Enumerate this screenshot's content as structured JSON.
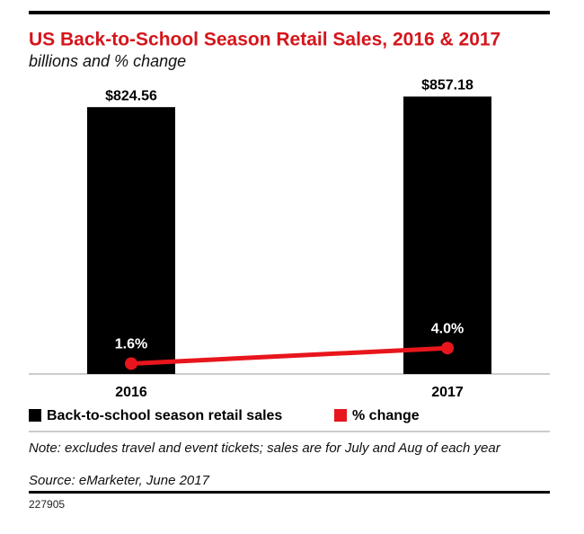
{
  "chart_data": {
    "type": "bar_line",
    "title": "US Back-to-School Season Retail Sales, 2016 & 2017",
    "subtitle": "billions and % change",
    "categories": [
      "2016",
      "2017"
    ],
    "series": [
      {
        "name": "Back-to-school season retail sales",
        "type": "bar",
        "color": "#000000",
        "values": [
          824.56,
          857.18
        ],
        "value_labels": [
          "$824.56",
          "$857.18"
        ]
      },
      {
        "name": "% change",
        "type": "line",
        "axis": "y2",
        "color": "#e8161c",
        "values": [
          1.6,
          4.0
        ],
        "value_labels": [
          "1.6%",
          "4.0%"
        ]
      }
    ],
    "ylim": [
      0,
      1000
    ],
    "y2lim": [
      0,
      50
    ],
    "note": "Note: excludes travel and event tickets; sales are for July and Aug of each year",
    "source": "Source: eMarketer, June 2017",
    "chart_id": "227905"
  }
}
